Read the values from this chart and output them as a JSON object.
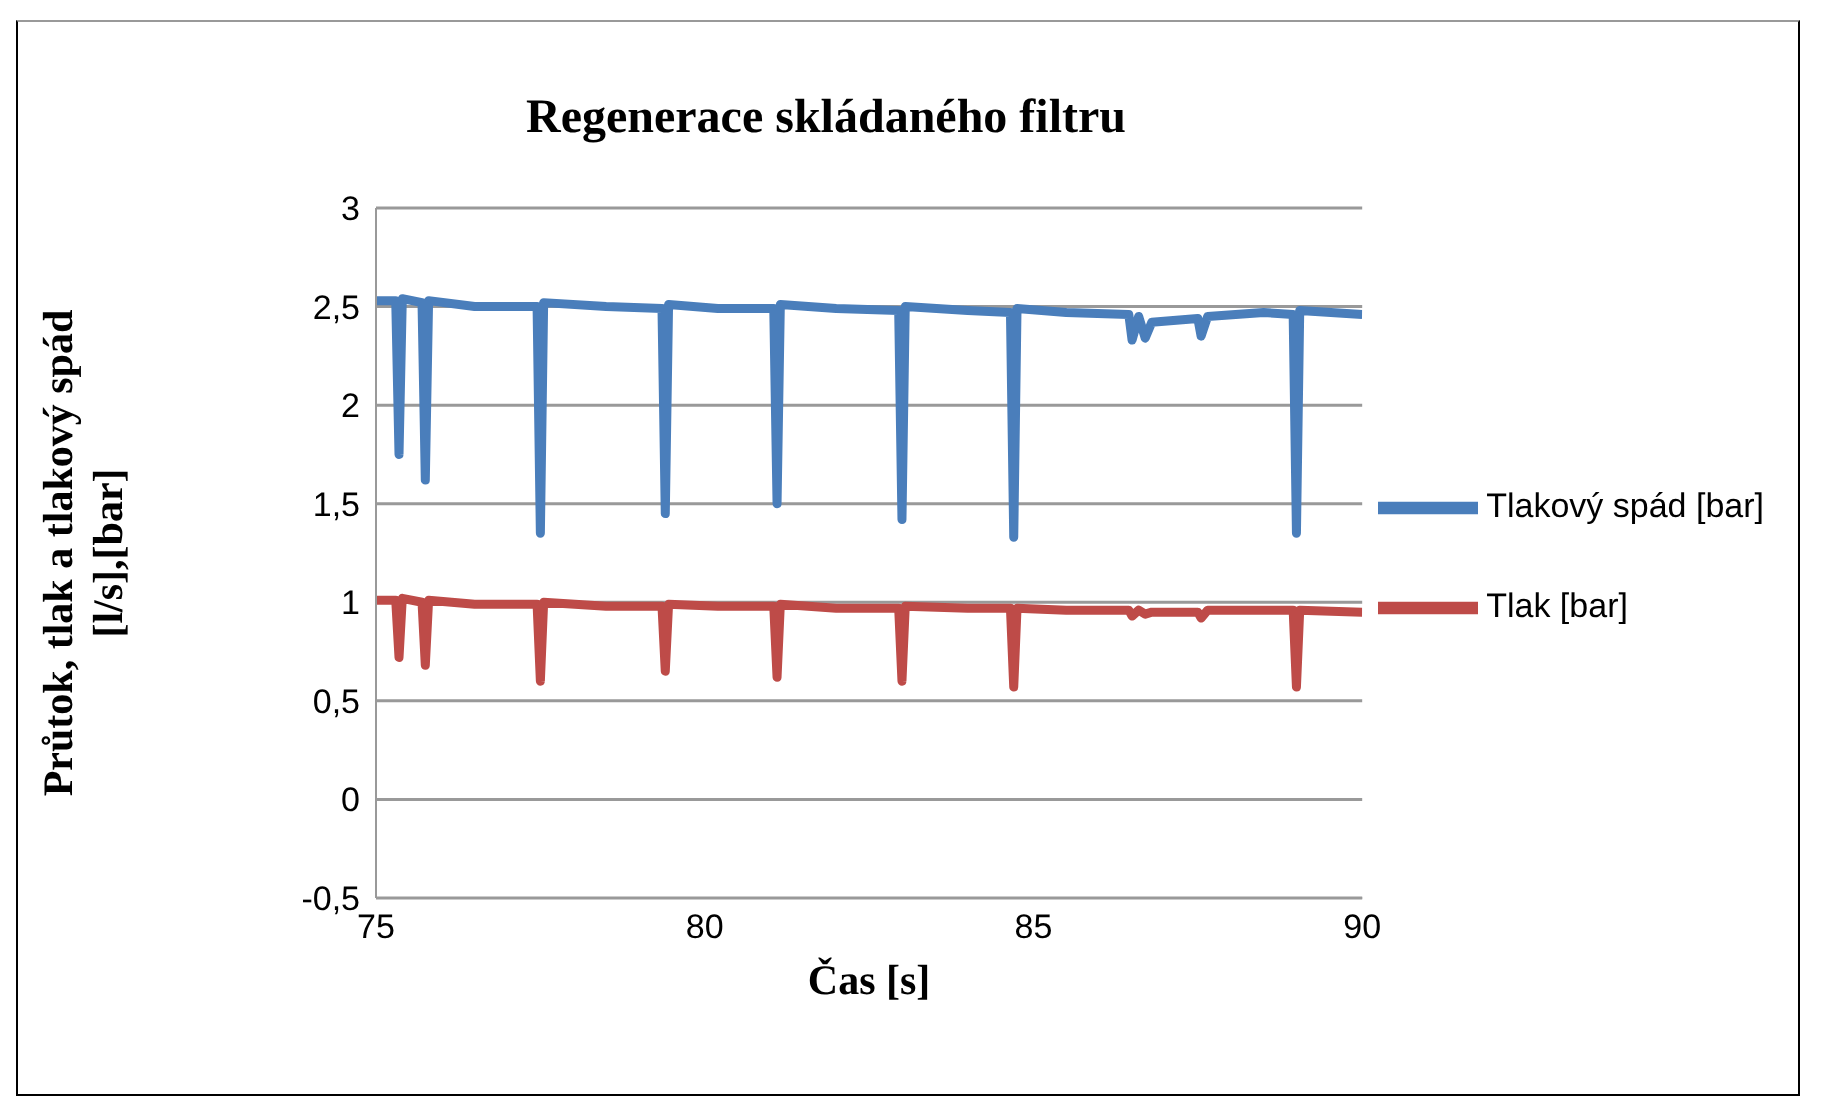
{
  "chart_data": {
    "type": "line",
    "title": "Regenerace skládaného filtru",
    "xlabel": "Čas [s]",
    "ylabel": "Průtok, tlak  a tlakový spád\n[l/s],[bar]",
    "x": [
      75,
      75.3,
      75.35,
      75.4,
      75.7,
      75.75,
      75.8,
      76.5,
      77.45,
      77.5,
      77.55,
      78.5,
      79.35,
      79.4,
      79.45,
      80.2,
      81.05,
      81.1,
      81.15,
      82,
      82.95,
      83,
      83.05,
      84,
      84.65,
      84.7,
      84.75,
      85.5,
      86.45,
      86.5,
      86.6,
      86.7,
      86.8,
      87.5,
      87.55,
      87.65,
      88.5,
      88.95,
      89,
      89.05,
      90
    ],
    "series": [
      {
        "name": "Tlakový spád [bar]",
        "color": "#4a7ebb",
        "values": [
          2.53,
          2.53,
          1.75,
          2.54,
          2.52,
          1.62,
          2.53,
          2.5,
          2.5,
          1.35,
          2.52,
          2.5,
          2.49,
          1.45,
          2.51,
          2.49,
          2.49,
          1.5,
          2.51,
          2.49,
          2.48,
          1.42,
          2.5,
          2.48,
          2.47,
          1.33,
          2.49,
          2.47,
          2.46,
          2.33,
          2.45,
          2.34,
          2.42,
          2.44,
          2.35,
          2.45,
          2.47,
          2.46,
          1.35,
          2.48,
          2.46
        ]
      },
      {
        "name": "Tlak [bar]",
        "color": "#be4b48",
        "values": [
          1.01,
          1.01,
          0.72,
          1.02,
          1.0,
          0.68,
          1.01,
          0.99,
          0.99,
          0.6,
          1.0,
          0.98,
          0.98,
          0.65,
          0.99,
          0.98,
          0.98,
          0.62,
          0.99,
          0.97,
          0.97,
          0.6,
          0.98,
          0.97,
          0.97,
          0.57,
          0.97,
          0.96,
          0.96,
          0.93,
          0.96,
          0.94,
          0.95,
          0.95,
          0.92,
          0.96,
          0.96,
          0.96,
          0.57,
          0.96,
          0.95
        ]
      }
    ],
    "xlim": [
      75,
      90
    ],
    "xticks": [
      75,
      80,
      85,
      90
    ],
    "ylim": [
      -0.5,
      3
    ],
    "yticks": [
      {
        "value": -0.5,
        "label": "-0,5"
      },
      0,
      {
        "value": 0.5,
        "label": "0,5"
      },
      1,
      {
        "value": 1.5,
        "label": "1,5"
      },
      2,
      {
        "value": 2.5,
        "label": "2,5"
      },
      3
    ],
    "grid": "y",
    "legend": "right",
    "marker": "none",
    "line_style": "solid"
  }
}
